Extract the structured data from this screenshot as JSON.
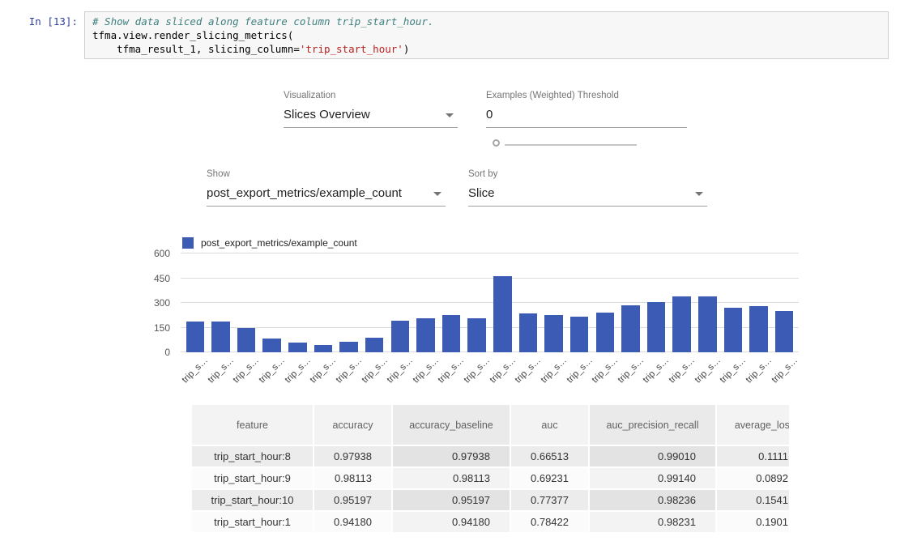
{
  "notebook": {
    "prompt": "In [13]:",
    "code": {
      "comment": "# Show data sliced along feature column trip_start_hour.",
      "line2": "tfma.view.render_slicing_metrics(",
      "line3_pre": "    tfma_result_1, slicing_column=",
      "line3_string": "'trip_start_hour'",
      "line3_post": ")"
    }
  },
  "controls": {
    "visualization": {
      "label": "Visualization",
      "value": "Slices Overview"
    },
    "threshold": {
      "label": "Examples (Weighted) Threshold",
      "value": "0"
    },
    "show": {
      "label": "Show",
      "value": "post_export_metrics/example_count"
    },
    "sort": {
      "label": "Sort by",
      "value": "Slice"
    }
  },
  "chart_data": {
    "type": "bar",
    "title": "",
    "xlabel": "",
    "ylabel": "",
    "legend": "post_export_metrics/example_count",
    "legend_position": "top-left",
    "bar_color": "#3b5bb5",
    "grid": true,
    "y_ticks": [
      0,
      150,
      300,
      450,
      600
    ],
    "ylim": [
      0,
      600
    ],
    "categories": [
      "trip_s…",
      "trip_s…",
      "trip_s…",
      "trip_s…",
      "trip_s…",
      "trip_s…",
      "trip_s…",
      "trip_s…",
      "trip_s…",
      "trip_s…",
      "trip_s…",
      "trip_s…",
      "trip_s…",
      "trip_s…",
      "trip_s…",
      "trip_s…",
      "trip_s…",
      "trip_s…",
      "trip_s…",
      "trip_s…",
      "trip_s…",
      "trip_s…",
      "trip_s…",
      "trip_s…"
    ],
    "values": [
      185,
      185,
      150,
      85,
      60,
      45,
      65,
      90,
      190,
      205,
      225,
      205,
      460,
      235,
      225,
      215,
      240,
      285,
      305,
      340,
      340,
      270,
      280,
      250
    ]
  },
  "table": {
    "columns": [
      "feature",
      "accuracy",
      "accuracy_baseline",
      "auc",
      "auc_precision_recall",
      "average_loss"
    ],
    "rows": [
      [
        "trip_start_hour:8",
        "0.97938",
        "0.97938",
        "0.66513",
        "0.99010",
        "0.1111"
      ],
      [
        "trip_start_hour:9",
        "0.98113",
        "0.98113",
        "0.69231",
        "0.99140",
        "0.0892"
      ],
      [
        "trip_start_hour:10",
        "0.95197",
        "0.95197",
        "0.77377",
        "0.98236",
        "0.1541"
      ],
      [
        "trip_start_hour:1",
        "0.94180",
        "0.94180",
        "0.78422",
        "0.98231",
        "0.1901"
      ]
    ]
  }
}
